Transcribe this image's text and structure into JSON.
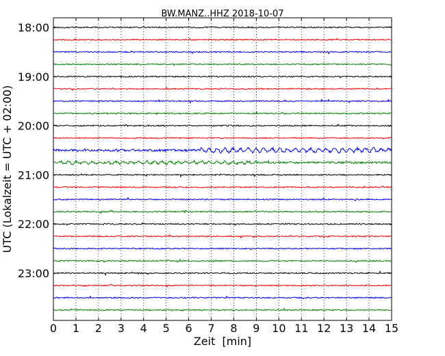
{
  "chart_data": {
    "type": "line",
    "title": "BW.MANZ..HHZ 2018-10-07",
    "xlabel": "Zeit  [min]",
    "ylabel": "UTC (Lokalzeit = UTC + 02:00)",
    "xlim": [
      0,
      15
    ],
    "x_ticks": [
      "0",
      "1",
      "2",
      "3",
      "4",
      "5",
      "6",
      "7",
      "8",
      "9",
      "10",
      "11",
      "12",
      "13",
      "14",
      "15"
    ],
    "y_tick_labels": [
      "18:00",
      "19:00",
      "20:00",
      "21:00",
      "22:00",
      "23:00"
    ],
    "grid": "vertical-dotted",
    "trace_colors": [
      "#000000",
      "#ff0000",
      "#0000ff",
      "#008000"
    ],
    "traces": [
      {
        "start": "18:00",
        "amplitude": "low"
      },
      {
        "start": "18:15",
        "amplitude": "low"
      },
      {
        "start": "18:30",
        "amplitude": "low"
      },
      {
        "start": "18:45",
        "amplitude": "low"
      },
      {
        "start": "19:00",
        "amplitude": "low"
      },
      {
        "start": "19:15",
        "amplitude": "low"
      },
      {
        "start": "19:30",
        "amplitude": "low"
      },
      {
        "start": "19:45",
        "amplitude": "low"
      },
      {
        "start": "20:00",
        "amplitude": "low"
      },
      {
        "start": "20:15",
        "amplitude": "low"
      },
      {
        "start": "20:30",
        "amplitude": "high",
        "event_window_min": [
          6.5,
          15
        ]
      },
      {
        "start": "20:45",
        "amplitude": "medium",
        "event_window_min": [
          0,
          9
        ]
      },
      {
        "start": "21:00",
        "amplitude": "low"
      },
      {
        "start": "21:15",
        "amplitude": "low"
      },
      {
        "start": "21:30",
        "amplitude": "low"
      },
      {
        "start": "21:45",
        "amplitude": "low"
      },
      {
        "start": "22:00",
        "amplitude": "low"
      },
      {
        "start": "22:15",
        "amplitude": "low"
      },
      {
        "start": "22:30",
        "amplitude": "low"
      },
      {
        "start": "22:45",
        "amplitude": "low"
      },
      {
        "start": "23:00",
        "amplitude": "low"
      },
      {
        "start": "23:15",
        "amplitude": "low"
      },
      {
        "start": "23:30",
        "amplitude": "low"
      },
      {
        "start": "23:45",
        "amplitude": "low"
      }
    ]
  }
}
